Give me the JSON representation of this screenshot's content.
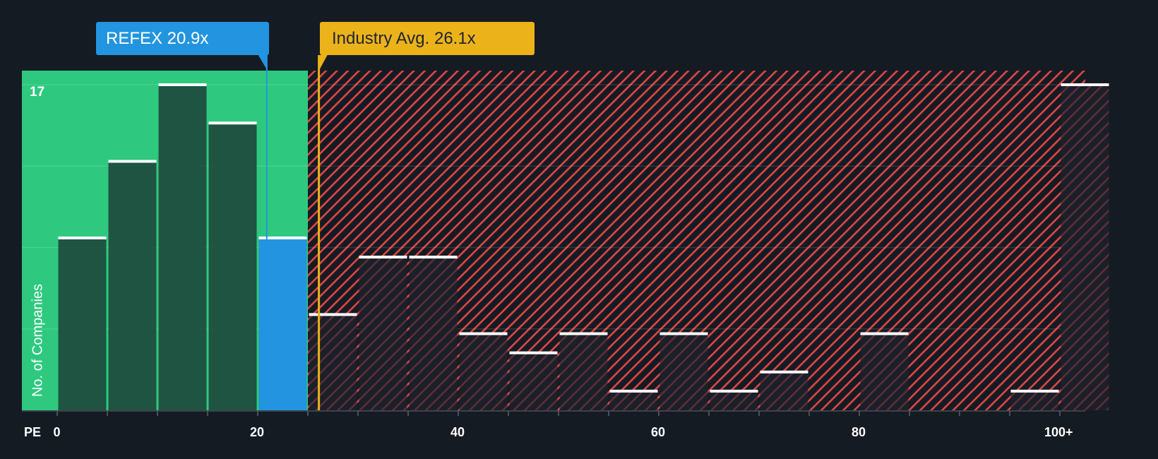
{
  "labels": {
    "company": "REFEX 20.9x",
    "industry": "Industry Avg. 26.1x",
    "y_axis": "No. of Companies",
    "x_axis": "PE",
    "y_max_tick": "17"
  },
  "colors": {
    "background": "#151b23",
    "undervalued_zone": "#2ec97f",
    "overvalued_hatch": "#e04646",
    "company_bar": "#2394df",
    "industry_line": "#ebb21a",
    "bar_fill_dark": "#1e4a3e"
  },
  "chart_data": {
    "type": "bar",
    "title": "",
    "xlabel": "PE",
    "ylabel": "No. of Companies",
    "bin_width": 5,
    "categories": [
      "0-5",
      "5-10",
      "10-15",
      "15-20",
      "20-25",
      "25-30",
      "30-35",
      "35-40",
      "40-45",
      "45-50",
      "50-55",
      "55-60",
      "60-65",
      "65-70",
      "70-75",
      "75-80",
      "80-85",
      "85-90",
      "90-95",
      "95-100",
      "100+"
    ],
    "bin_starts": [
      0,
      5,
      10,
      15,
      20,
      25,
      30,
      35,
      40,
      45,
      50,
      55,
      60,
      65,
      70,
      75,
      80,
      85,
      90,
      95,
      100
    ],
    "values": [
      9,
      13,
      17,
      15,
      9,
      5,
      8,
      8,
      4,
      3,
      4,
      1,
      4,
      1,
      2,
      0,
      4,
      0,
      0,
      1,
      17
    ],
    "x_ticks": [
      "0",
      "20",
      "40",
      "60",
      "80",
      "100+"
    ],
    "x_tick_values": [
      0,
      20,
      40,
      60,
      80,
      100
    ],
    "y_ticks": [
      "17"
    ],
    "ylim": [
      0,
      17.7
    ],
    "gridlines_y": [
      4.25,
      8.5,
      12.75,
      17
    ],
    "company": {
      "name": "REFEX",
      "value": 20.9,
      "highlight_bin": "20-25"
    },
    "industry_average": 26.1,
    "undervalued_threshold": 25,
    "legend": []
  }
}
